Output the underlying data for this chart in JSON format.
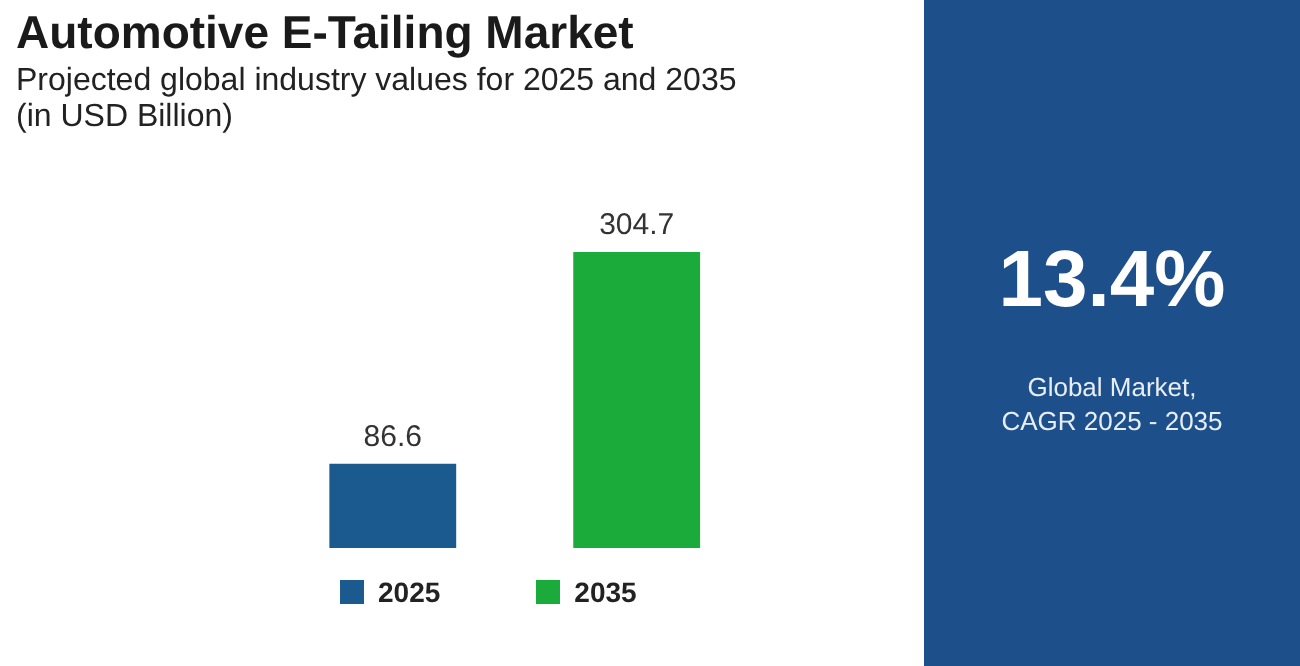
{
  "chart_data": [
    {
      "type": "bar",
      "title": "Automotive E-Tailing Market",
      "subtitle": "Projected global industry values for 2025 and 2035\n(in USD Billion)",
      "categories": [
        "2025",
        "2035"
      ],
      "values": [
        86.6,
        304.7
      ],
      "colors": [
        "#1b5a8e",
        "#1aab3a"
      ],
      "data_labels": true
    },
    {
      "type": "other",
      "annotations": [
        "13.4%",
        "Global Market, CAGR 2025 - 2035"
      ]
    }
  ]
}
